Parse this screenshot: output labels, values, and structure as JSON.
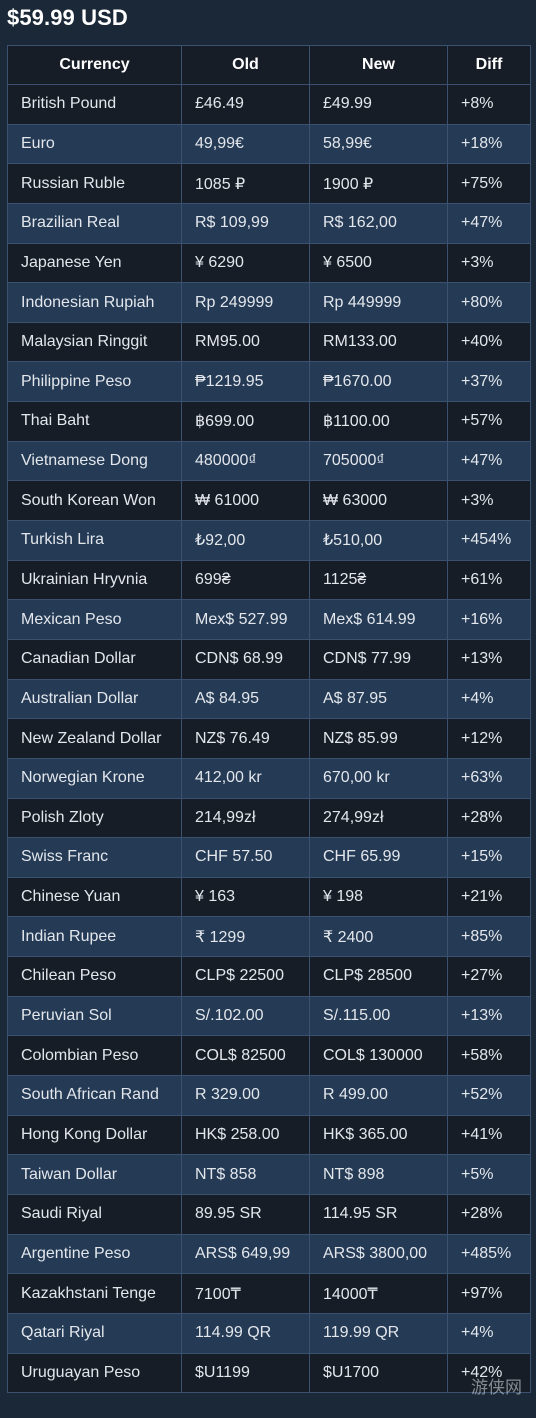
{
  "title": "$59.99 USD",
  "headers": [
    "Currency",
    "Old",
    "New",
    "Diff"
  ],
  "rows": [
    [
      "British Pound",
      "£46.49",
      "£49.99",
      "+8%"
    ],
    [
      "Euro",
      "49,99€",
      "58,99€",
      "+18%"
    ],
    [
      "Russian Ruble",
      "1085 ₽",
      "1900 ₽",
      "+75%"
    ],
    [
      "Brazilian Real",
      "R$ 109,99",
      "R$ 162,00",
      "+47%"
    ],
    [
      "Japanese Yen",
      "¥ 6290",
      "¥ 6500",
      "+3%"
    ],
    [
      "Indonesian Rupiah",
      "Rp 249999",
      "Rp 449999",
      "+80%"
    ],
    [
      "Malaysian Ringgit",
      "RM95.00",
      "RM133.00",
      "+40%"
    ],
    [
      "Philippine Peso",
      "₱1219.95",
      "₱1670.00",
      "+37%"
    ],
    [
      "Thai Baht",
      "฿699.00",
      "฿1100.00",
      "+57%"
    ],
    [
      "Vietnamese Dong",
      "480000₫",
      "705000₫",
      "+47%"
    ],
    [
      "South Korean Won",
      "₩ 61000",
      "₩ 63000",
      "+3%"
    ],
    [
      "Turkish Lira",
      "₺92,00",
      "₺510,00",
      "+454%"
    ],
    [
      "Ukrainian Hryvnia",
      "699₴",
      "1125₴",
      "+61%"
    ],
    [
      "Mexican Peso",
      "Mex$ 527.99",
      "Mex$ 614.99",
      "+16%"
    ],
    [
      "Canadian Dollar",
      "CDN$ 68.99",
      "CDN$ 77.99",
      "+13%"
    ],
    [
      "Australian Dollar",
      "A$ 84.95",
      "A$ 87.95",
      "+4%"
    ],
    [
      "New Zealand Dollar",
      "NZ$ 76.49",
      "NZ$ 85.99",
      "+12%"
    ],
    [
      "Norwegian Krone",
      "412,00 kr",
      "670,00 kr",
      "+63%"
    ],
    [
      "Polish Zloty",
      "214,99zł",
      "274,99zł",
      "+28%"
    ],
    [
      "Swiss Franc",
      "CHF 57.50",
      "CHF 65.99",
      "+15%"
    ],
    [
      "Chinese Yuan",
      "¥ 163",
      "¥ 198",
      "+21%"
    ],
    [
      "Indian Rupee",
      "₹ 1299",
      "₹ 2400",
      "+85%"
    ],
    [
      "Chilean Peso",
      "CLP$ 22500",
      "CLP$ 28500",
      "+27%"
    ],
    [
      "Peruvian Sol",
      "S/.102.00",
      "S/.115.00",
      "+13%"
    ],
    [
      "Colombian Peso",
      "COL$ 82500",
      "COL$ 130000",
      "+58%"
    ],
    [
      "South African Rand",
      "R 329.00",
      "R 499.00",
      "+52%"
    ],
    [
      "Hong Kong Dollar",
      "HK$ 258.00",
      "HK$ 365.00",
      "+41%"
    ],
    [
      "Taiwan Dollar",
      "NT$ 858",
      "NT$ 898",
      "+5%"
    ],
    [
      "Saudi Riyal",
      "89.95 SR",
      "114.95 SR",
      "+28%"
    ],
    [
      "Argentine Peso",
      "ARS$ 649,99",
      "ARS$ 3800,00",
      "+485%"
    ],
    [
      "Kazakhstani Tenge",
      "7100₸",
      "14000₸",
      "+97%"
    ],
    [
      "Qatari Riyal",
      "114.99 QR",
      "119.99 QR",
      "+4%"
    ],
    [
      "Uruguayan Peso",
      "$U1199",
      "$U1700",
      "+42%"
    ]
  ],
  "watermark": "游侠网",
  "colors": {
    "background": "#1b2838",
    "row_dark": "#161d27",
    "row_light": "#243a55",
    "border": "#3a5270",
    "text": "#e3e7ec"
  }
}
